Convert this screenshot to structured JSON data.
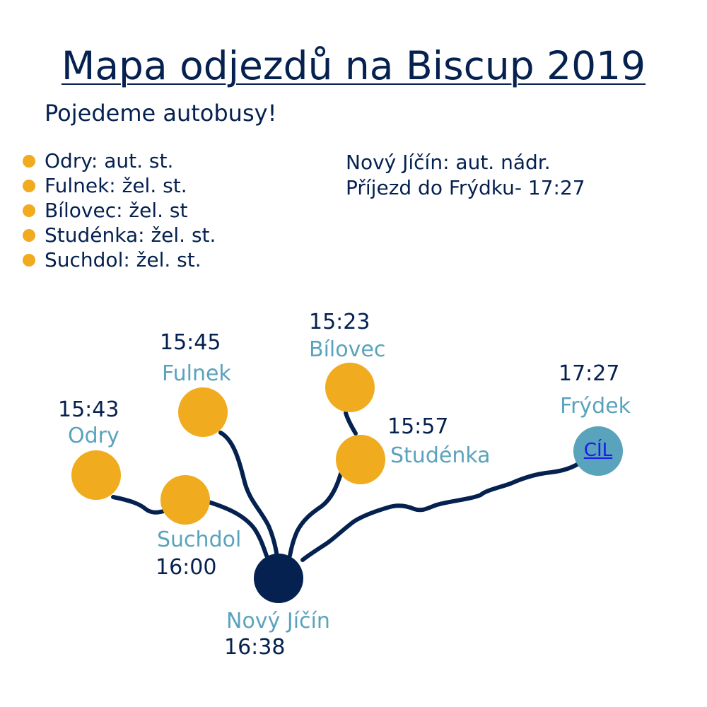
{
  "title": "Mapa odjezdů na Biscup 2019",
  "subtitle": "Pojedeme autobusy!",
  "stops_list": [
    {
      "label": "Odry: aut. st."
    },
    {
      "label": "Fulnek: žel. st."
    },
    {
      "label": "Bílovec: žel. st"
    },
    {
      "label": "Studénka: žel. st."
    },
    {
      "label": "Suchdol: žel. st."
    }
  ],
  "info": {
    "hub_note": "Nový Jíčín: aut. nádr.",
    "arrival_note": "Příjezd do Frýdku- 17:27"
  },
  "map": {
    "stops": {
      "odry": {
        "name": "Odry",
        "time": "15:43"
      },
      "fulnek": {
        "name": "Fulnek",
        "time": "15:45"
      },
      "bilovec": {
        "name": "Bílovec",
        "time": "15:23"
      },
      "studenka": {
        "name": "Studénka",
        "time": "15:57"
      },
      "suchdol": {
        "name": "Suchdol",
        "time": "16:00"
      },
      "novy_jicin": {
        "name": "Nový Jíčín",
        "time": "16:38"
      },
      "frydek": {
        "name": "Frýdek",
        "time": "17:27"
      }
    },
    "goal_label": "CÍL"
  },
  "colors": {
    "stop": "#f0ab1f",
    "hub": "#05214f",
    "goal": "#5aa3bc",
    "route": "#05214f",
    "place_text": "#5aa3bc",
    "time_text": "#05214f"
  }
}
